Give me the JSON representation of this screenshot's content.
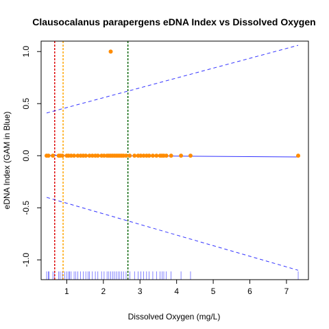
{
  "chart_data": {
    "type": "scatter",
    "title": "Clausocalanus parapergens eDNA Index vs Dissolved Oxygen",
    "xlabel": "Dissolved Oxygen (mg/L)",
    "ylabel": "eDNA Index (GAM in Blue)",
    "xlim": [
      0.3,
      7.6
    ],
    "ylim": [
      -1.19,
      1.1
    ],
    "x_ticks": [
      1,
      2,
      3,
      4,
      5,
      6,
      7
    ],
    "x_tick_labels": [
      "1",
      "2",
      "3",
      "4",
      "5",
      "6",
      "7"
    ],
    "y_ticks": [
      -1.0,
      -0.5,
      0.0,
      0.5,
      1.0
    ],
    "y_tick_labels": [
      "-1.0",
      "-0.5",
      "0.0",
      "0.5",
      "1.0"
    ],
    "grid": false,
    "colors": {
      "points": "#ff8c00",
      "gam": "#3333ff",
      "rug": "#3333ff",
      "vline_red": "#dd0000",
      "vline_orange": "#ffa500",
      "vline_green": "#006400"
    },
    "points": {
      "x": [
        0.45,
        0.5,
        0.62,
        0.78,
        0.82,
        0.88,
        1.0,
        1.05,
        1.12,
        1.2,
        1.3,
        1.38,
        1.45,
        1.52,
        1.62,
        1.7,
        1.78,
        1.85,
        1.95,
        2.02,
        2.1,
        2.15,
        2.2,
        2.25,
        2.3,
        2.35,
        2.4,
        2.45,
        2.5,
        2.55,
        2.62,
        2.72,
        2.85,
        2.95,
        3.02,
        3.1,
        3.18,
        3.25,
        3.35,
        3.45,
        3.55,
        3.6,
        3.65,
        3.72,
        3.85,
        4.12,
        4.38,
        7.32,
        2.2
      ],
      "y": [
        0,
        0,
        0,
        0,
        0,
        0,
        0,
        0,
        0,
        0,
        0,
        0,
        0,
        0,
        0,
        0,
        0,
        0,
        0,
        0,
        0,
        0,
        0,
        0,
        0,
        0,
        0,
        0,
        0,
        0,
        0,
        0,
        0,
        0,
        0,
        0,
        0,
        0,
        0,
        0,
        0,
        0,
        0,
        0,
        0,
        0,
        0,
        0,
        1.0
      ]
    },
    "gam_fit": {
      "x": [
        0.45,
        7.32
      ],
      "y": [
        0.005,
        -0.012
      ]
    },
    "confidence_upper": {
      "x": [
        0.45,
        7.32
      ],
      "y": [
        0.41,
        1.06
      ]
    },
    "confidence_lower": {
      "x": [
        0.45,
        7.32
      ],
      "y": [
        -0.4,
        -1.1
      ]
    },
    "vertical_lines": [
      {
        "x": 0.67,
        "color": "#dd0000"
      },
      {
        "x": 0.9,
        "color": "#ffa500"
      },
      {
        "x": 2.67,
        "color": "#006400"
      }
    ],
    "rug_x": [
      0.45,
      0.5,
      0.52,
      0.62,
      0.66,
      0.78,
      0.82,
      0.88,
      0.95,
      1.0,
      1.05,
      1.08,
      1.12,
      1.2,
      1.25,
      1.3,
      1.38,
      1.45,
      1.52,
      1.58,
      1.62,
      1.7,
      1.78,
      1.85,
      1.95,
      2.02,
      2.1,
      2.15,
      2.2,
      2.25,
      2.3,
      2.35,
      2.4,
      2.45,
      2.5,
      2.55,
      2.62,
      2.72,
      2.85,
      2.95,
      3.02,
      3.1,
      3.18,
      3.25,
      3.35,
      3.45,
      3.55,
      3.6,
      3.65,
      3.72,
      3.85,
      4.12,
      4.38,
      7.32
    ]
  }
}
